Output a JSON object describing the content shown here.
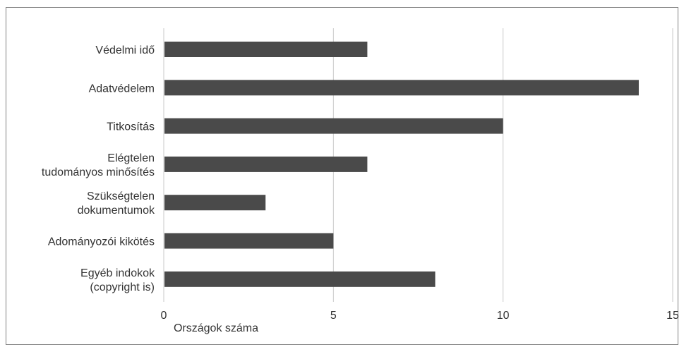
{
  "chart_data": {
    "type": "bar",
    "orientation": "horizontal",
    "title": "",
    "categories": [
      [
        "Védelmi idő"
      ],
      [
        "Adatvédelem"
      ],
      [
        "Titkosítás"
      ],
      [
        "Elégtelen",
        "tudományos minősítés"
      ],
      [
        "Szükségtelen",
        "dokumentumok"
      ],
      [
        "Adományozói kikötés"
      ],
      [
        "Egyéb indokok",
        "(copyright is)"
      ]
    ],
    "values": [
      6,
      14,
      10,
      6,
      3,
      5,
      8
    ],
    "xlabel": "Országok száma",
    "ylabel": "",
    "xlim": [
      0,
      15
    ],
    "xticks": [
      "0",
      "5",
      "10",
      "15"
    ],
    "grid": true,
    "bar_color": "#4a4a4a",
    "legend": "none"
  }
}
